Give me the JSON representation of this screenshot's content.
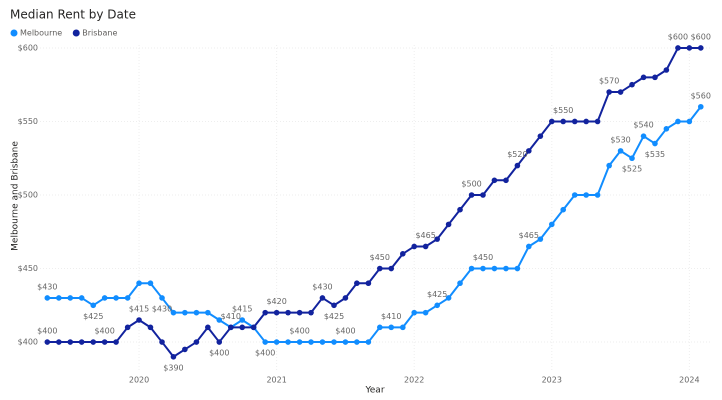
{
  "chart_data": {
    "type": "line",
    "title": "Median Rent by Date",
    "x_label": "Year",
    "y_label": "Melbourne and Brisbane",
    "x": [
      2019.333,
      2019.417,
      2019.5,
      2019.583,
      2019.667,
      2019.75,
      2019.833,
      2019.917,
      2020,
      2020.083,
      2020.167,
      2020.25,
      2020.333,
      2020.417,
      2020.5,
      2020.583,
      2020.667,
      2020.75,
      2020.833,
      2020.917,
      2021,
      2021.083,
      2021.167,
      2021.25,
      2021.333,
      2021.417,
      2021.5,
      2021.583,
      2021.667,
      2021.75,
      2021.833,
      2021.917,
      2022,
      2022.083,
      2022.167,
      2022.25,
      2022.333,
      2022.417,
      2022.5,
      2022.583,
      2022.667,
      2022.75,
      2022.833,
      2022.917,
      2023,
      2023.083,
      2023.167,
      2023.25,
      2023.333,
      2023.417,
      2023.5,
      2023.583,
      2023.667,
      2023.75,
      2023.833,
      2023.917,
      2024,
      2024.083
    ],
    "series": [
      {
        "name": "Melbourne",
        "color": "#118dff",
        "values": [
          430,
          430,
          430,
          430,
          425,
          430,
          430,
          430,
          440,
          440,
          430,
          420,
          420,
          420,
          420,
          415,
          410,
          415,
          410,
          400,
          400,
          400,
          400,
          400,
          400,
          400,
          400,
          400,
          400,
          410,
          410,
          410,
          420,
          420,
          425,
          430,
          440,
          450,
          450,
          450,
          450,
          450,
          465,
          470,
          480,
          490,
          500,
          500,
          500,
          520,
          530,
          525,
          540,
          535,
          545,
          550,
          550,
          560
        ],
        "value_labels": [
          "$430",
          null,
          null,
          null,
          "$425",
          null,
          null,
          null,
          null,
          null,
          "$430",
          null,
          null,
          null,
          null,
          null,
          null,
          "$415",
          null,
          "$400",
          null,
          null,
          "$400",
          null,
          null,
          null,
          "$400",
          null,
          null,
          null,
          "$410",
          null,
          null,
          null,
          "$425",
          null,
          null,
          null,
          "$450",
          null,
          null,
          null,
          "$465",
          null,
          null,
          null,
          null,
          null,
          null,
          null,
          "$530",
          "$525",
          "$540",
          "$535",
          null,
          null,
          null,
          "$560"
        ]
      },
      {
        "name": "Brisbane",
        "color": "#12239e",
        "values": [
          400,
          400,
          400,
          400,
          400,
          400,
          400,
          410,
          415,
          410,
          400,
          390,
          395,
          400,
          410,
          400,
          410,
          410,
          410,
          420,
          420,
          420,
          420,
          420,
          430,
          425,
          430,
          440,
          440,
          450,
          450,
          460,
          465,
          465,
          470,
          480,
          490,
          500,
          500,
          510,
          510,
          520,
          530,
          540,
          550,
          550,
          550,
          550,
          550,
          570,
          570,
          575,
          580,
          580,
          585,
          600,
          600,
          600
        ],
        "value_labels": [
          "$400",
          null,
          null,
          null,
          null,
          "$400",
          null,
          null,
          "$415",
          null,
          null,
          "$390",
          null,
          null,
          null,
          "$400",
          "$410",
          null,
          null,
          null,
          "$420",
          null,
          null,
          null,
          "$430",
          "$425",
          null,
          null,
          null,
          "$450",
          null,
          null,
          null,
          "$465",
          null,
          null,
          null,
          "$500",
          null,
          null,
          null,
          "$520",
          null,
          null,
          null,
          "$550",
          null,
          null,
          null,
          "$570",
          null,
          null,
          null,
          null,
          null,
          "$600",
          null,
          "$600"
        ]
      }
    ],
    "xlim": [
      2019.28,
      2024.15
    ],
    "xticks": [
      2020,
      2021,
      2022,
      2023,
      2024
    ],
    "ylim": [
      381,
      602
    ],
    "yticks": [
      {
        "value": 400,
        "label": "$400"
      },
      {
        "value": 450,
        "label": "$450"
      },
      {
        "value": 500,
        "label": "$500"
      },
      {
        "value": 550,
        "label": "$550"
      },
      {
        "value": 600,
        "label": "$600"
      }
    ],
    "grid": true,
    "legend": "top-left"
  }
}
